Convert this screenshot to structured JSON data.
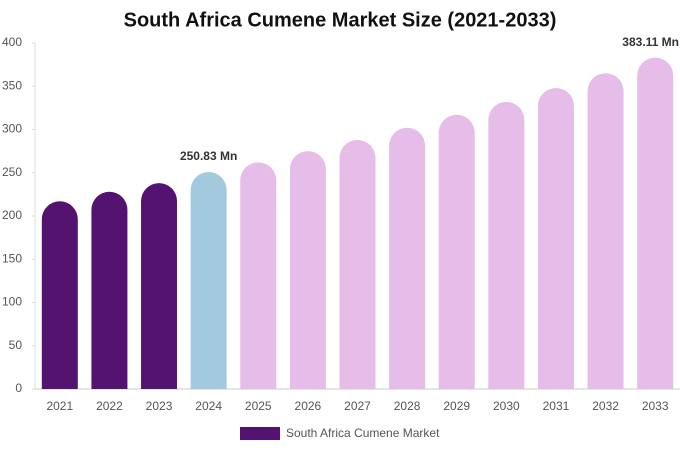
{
  "chart_data": {
    "type": "bar",
    "title": "South Africa Cumene Market Size (2021-2033)",
    "categories": [
      "2021",
      "2022",
      "2023",
      "2024",
      "2025",
      "2026",
      "2027",
      "2028",
      "2029",
      "2030",
      "2031",
      "2032",
      "2033"
    ],
    "series": [
      {
        "name": "South Africa Cumene Market",
        "color": "#541271",
        "colors": [
          "#541271",
          "#541271",
          "#541271",
          "#a3c9de",
          "#e6bde8",
          "#e6bde8",
          "#e6bde8",
          "#e6bde8",
          "#e6bde8",
          "#e6bde8",
          "#e6bde8",
          "#e6bde8",
          "#e6bde8"
        ],
        "values": [
          217,
          228,
          238,
          250.83,
          262,
          275,
          288,
          302,
          317,
          332,
          348,
          365,
          383.11
        ],
        "value_labels": [
          null,
          null,
          null,
          "250.83 Mn",
          null,
          null,
          null,
          null,
          null,
          null,
          null,
          null,
          "383.11 Mn"
        ]
      }
    ],
    "ylim": [
      0,
      400
    ],
    "yticks": [
      0,
      50,
      100,
      150,
      200,
      250,
      300,
      350,
      400
    ]
  }
}
